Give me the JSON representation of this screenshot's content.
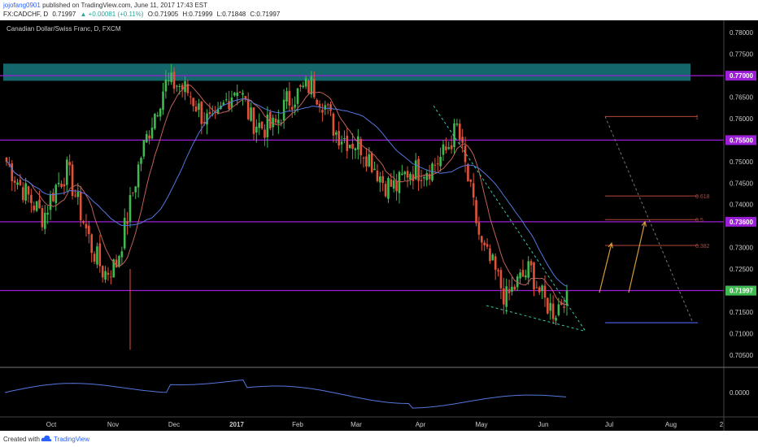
{
  "header": {
    "author": "jojofang0901",
    "published": "published on TradingView.com, June 11, 2017 17:43 EST",
    "symbol": "FX:CADCHF, D",
    "last": "0.71997",
    "change": "▲ +0.00081 (+0.11%)",
    "open": "O:0.71905",
    "high": "H:0.71999",
    "low": "L:0.71848",
    "close": "C:0.71997"
  },
  "chart_title": "Canadian Dollar/Swiss Franc, D, FXCM",
  "price_axis": {
    "ticks": [
      "0.78000",
      "0.77500",
      "0.76500",
      "0.76000",
      "0.75000",
      "0.74500",
      "0.74000",
      "0.73000",
      "0.72500",
      "0.71500",
      "0.71000",
      "0.70500"
    ],
    "labels": [
      {
        "text": "0.77000",
        "kind": "level"
      },
      {
        "text": "0.75500",
        "kind": "level"
      },
      {
        "text": "0.73600",
        "kind": "level"
      },
      {
        "text": "0.72000",
        "kind": "level"
      },
      {
        "text": "0.71997",
        "kind": "last"
      }
    ]
  },
  "time_axis": [
    "Oct",
    "Nov",
    "Dec",
    "2017",
    "Feb",
    "Mar",
    "Apr",
    "May",
    "Jun",
    "Jul",
    "Aug",
    "2"
  ],
  "oscillator_axis": [
    "0.0000"
  ],
  "fib_labels": [
    "1",
    "0.618",
    "0.5",
    "0.382"
  ],
  "colors": {
    "background": "#000000",
    "up": "#3fb950",
    "down": "#e0533a",
    "level_line": "#9b1fd6",
    "zone": "#1b8a8e",
    "ma_fast": "#c0605a",
    "ma_slow": "#5577dd",
    "fib_line": "#b5483a",
    "fib_base": "#3b49b8",
    "arrow": "#d79a3a",
    "wedge": "#37c7a8"
  },
  "chart_data": {
    "type": "candlestick",
    "symbol": "FX:CADCHF",
    "timeframe": "D",
    "ylim": [
      0.7025,
      0.7825
    ],
    "horizontal_levels": [
      0.77,
      0.755,
      0.736,
      0.72
    ],
    "resistance_zone": [
      0.7688,
      0.7728
    ],
    "last_price": 0.71997,
    "ohlc_last": {
      "open": 0.71905,
      "high": 0.71999,
      "low": 0.71848,
      "close": 0.71997
    },
    "fib_levels": [
      {
        "label": "1",
        "price": 0.7605
      },
      {
        "label": "0.618",
        "price": 0.742
      },
      {
        "label": "0.5",
        "price": 0.7365
      },
      {
        "label": "0.382",
        "price": 0.7305
      }
    ],
    "fib_base": 0.7125,
    "close_path": [
      0.75,
      0.745,
      0.741,
      0.737,
      0.744,
      0.748,
      0.739,
      0.73,
      0.724,
      0.726,
      0.738,
      0.751,
      0.76,
      0.768,
      0.768,
      0.766,
      0.761,
      0.758,
      0.764,
      0.768,
      0.76,
      0.758,
      0.758,
      0.764,
      0.766,
      0.768,
      0.764,
      0.757,
      0.755,
      0.754,
      0.75,
      0.745,
      0.744,
      0.748,
      0.748,
      0.749,
      0.752,
      0.758,
      0.744,
      0.73,
      0.725,
      0.718,
      0.722,
      0.725,
      0.718,
      0.715,
      0.72
    ]
  },
  "footer": {
    "created": "Created with",
    "brand": "TradingView"
  }
}
